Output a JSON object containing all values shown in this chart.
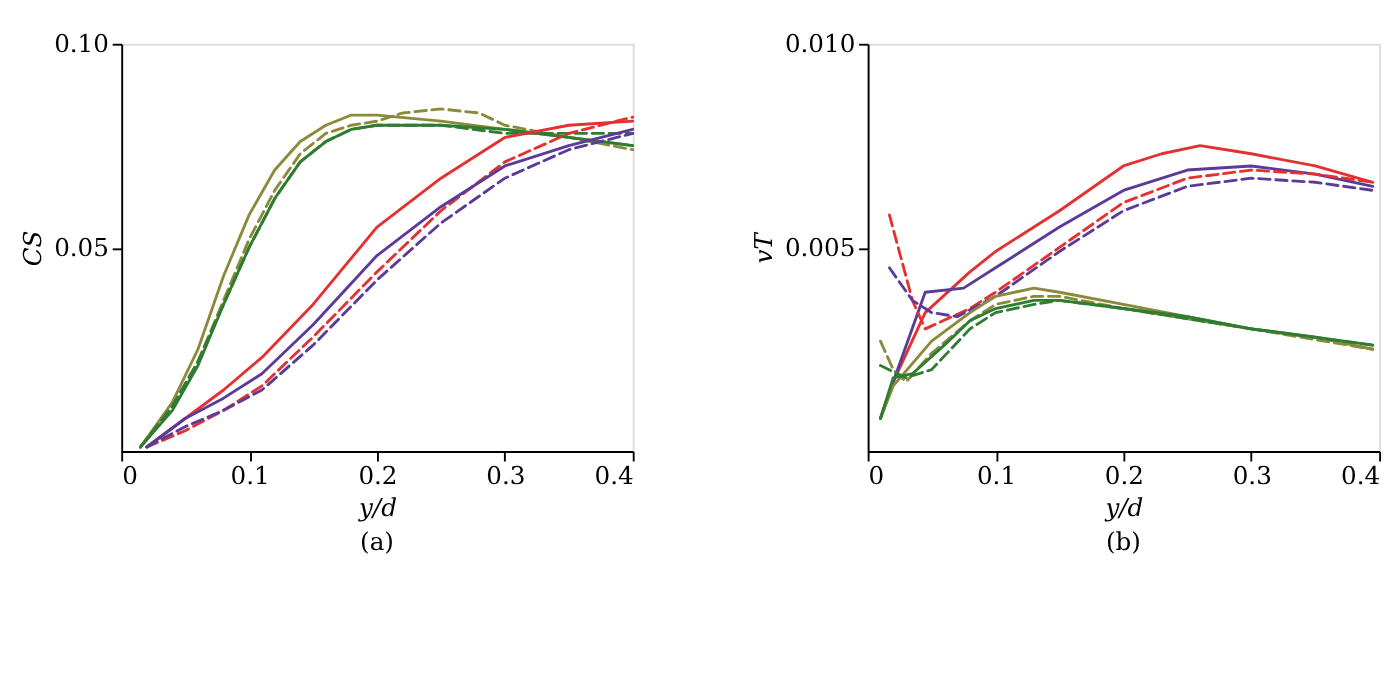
{
  "chart_data": [
    {
      "type": "line",
      "xlabel": "y/d",
      "ylabel": "CS",
      "annotations": [
        "(a)"
      ],
      "xlim": [
        0,
        0.4
      ],
      "xticks": [
        0,
        0.1,
        0.2,
        0.3,
        0.4
      ],
      "ylim": [
        0,
        0.1
      ],
      "yticks": [
        {
          "value": 0.05,
          "label": "0.05"
        },
        {
          "value": 0.1,
          "label": "0.10"
        }
      ],
      "series": [
        {
          "color": "#8a8a3a",
          "line_style": "solid",
          "x": [
            0.015,
            0.04,
            0.06,
            0.08,
            0.1,
            0.12,
            0.14,
            0.16,
            0.18,
            0.2,
            0.25,
            0.3,
            0.35,
            0.4
          ],
          "values": [
            0.001,
            0.012,
            0.025,
            0.043,
            0.058,
            0.069,
            0.076,
            0.08,
            0.0825,
            0.0825,
            0.081,
            0.079,
            0.077,
            0.075
          ]
        },
        {
          "color": "#8a8a3a",
          "line_style": "dashed",
          "x": [
            0.015,
            0.04,
            0.06,
            0.08,
            0.1,
            0.12,
            0.14,
            0.16,
            0.18,
            0.2,
            0.22,
            0.25,
            0.28,
            0.3,
            0.35,
            0.4
          ],
          "values": [
            0.001,
            0.011,
            0.022,
            0.037,
            0.052,
            0.064,
            0.073,
            0.078,
            0.08,
            0.081,
            0.083,
            0.084,
            0.083,
            0.08,
            0.077,
            0.074
          ]
        },
        {
          "color": "#2e7d32",
          "line_style": "solid",
          "x": [
            0.015,
            0.04,
            0.06,
            0.08,
            0.1,
            0.12,
            0.14,
            0.16,
            0.18,
            0.2,
            0.25,
            0.3,
            0.35,
            0.4
          ],
          "values": [
            0.001,
            0.01,
            0.021,
            0.036,
            0.05,
            0.062,
            0.071,
            0.076,
            0.079,
            0.08,
            0.08,
            0.079,
            0.077,
            0.075
          ]
        },
        {
          "color": "#2e7d32",
          "line_style": "dashed",
          "x": [
            0.015,
            0.04,
            0.06,
            0.08,
            0.1,
            0.12,
            0.14,
            0.16,
            0.18,
            0.2,
            0.25,
            0.3,
            0.35,
            0.4
          ],
          "values": [
            0.001,
            0.011,
            0.022,
            0.036,
            0.05,
            0.062,
            0.071,
            0.076,
            0.079,
            0.08,
            0.08,
            0.078,
            0.078,
            0.078
          ]
        },
        {
          "color": "#e53030",
          "line_style": "solid",
          "x": [
            0.02,
            0.05,
            0.08,
            0.11,
            0.15,
            0.2,
            0.25,
            0.28,
            0.3,
            0.35,
            0.4
          ],
          "values": [
            0.001,
            0.008,
            0.015,
            0.023,
            0.036,
            0.055,
            0.067,
            0.073,
            0.077,
            0.08,
            0.081
          ]
        },
        {
          "color": "#e53030",
          "line_style": "dashed",
          "x": [
            0.02,
            0.05,
            0.08,
            0.11,
            0.15,
            0.2,
            0.25,
            0.3,
            0.35,
            0.4
          ],
          "values": [
            0.001,
            0.005,
            0.01,
            0.016,
            0.028,
            0.044,
            0.059,
            0.071,
            0.078,
            0.082
          ]
        },
        {
          "color": "#5b3a99",
          "line_style": "solid",
          "x": [
            0.02,
            0.05,
            0.08,
            0.11,
            0.15,
            0.2,
            0.25,
            0.3,
            0.35,
            0.4
          ],
          "values": [
            0.001,
            0.008,
            0.013,
            0.019,
            0.031,
            0.048,
            0.06,
            0.07,
            0.075,
            0.079
          ]
        },
        {
          "color": "#5b3a99",
          "line_style": "dashed",
          "x": [
            0.02,
            0.05,
            0.08,
            0.11,
            0.15,
            0.2,
            0.25,
            0.3,
            0.35,
            0.4
          ],
          "values": [
            0.001,
            0.006,
            0.01,
            0.015,
            0.026,
            0.042,
            0.056,
            0.067,
            0.074,
            0.078
          ]
        }
      ]
    },
    {
      "type": "line",
      "xlabel": "y/d",
      "ylabel": "vT",
      "annotations": [
        "(b)"
      ],
      "xlim": [
        0,
        0.4
      ],
      "xticks": [
        0,
        0.1,
        0.2,
        0.3,
        0.4
      ],
      "ylim": [
        0,
        0.01
      ],
      "yticks": [
        {
          "value": 0.005,
          "label": "0.005"
        },
        {
          "value": 0.01,
          "label": "0.010"
        }
      ],
      "series": [
        {
          "color": "#e53030",
          "line_style": "solid",
          "x": [
            0.01,
            0.02,
            0.045,
            0.08,
            0.1,
            0.15,
            0.2,
            0.23,
            0.26,
            0.3,
            0.35,
            0.395
          ],
          "values": [
            0.0008,
            0.0017,
            0.0034,
            0.0044,
            0.0049,
            0.0059,
            0.007,
            0.0073,
            0.0075,
            0.0073,
            0.007,
            0.0066
          ]
        },
        {
          "color": "#5b3a99",
          "line_style": "solid",
          "x": [
            0.01,
            0.02,
            0.045,
            0.075,
            0.1,
            0.15,
            0.2,
            0.25,
            0.3,
            0.35,
            0.395
          ],
          "values": [
            0.0008,
            0.0017,
            0.0039,
            0.004,
            0.0045,
            0.0055,
            0.0064,
            0.0069,
            0.007,
            0.0068,
            0.0065
          ]
        },
        {
          "color": "#e53030",
          "line_style": "dashed",
          "x": [
            0.017,
            0.035,
            0.045,
            0.08,
            0.1,
            0.15,
            0.2,
            0.25,
            0.3,
            0.35,
            0.395
          ],
          "values": [
            0.0058,
            0.0037,
            0.003,
            0.0035,
            0.0039,
            0.005,
            0.0061,
            0.0067,
            0.0069,
            0.0068,
            0.0066
          ]
        },
        {
          "color": "#5b3a99",
          "line_style": "dashed",
          "x": [
            0.017,
            0.035,
            0.05,
            0.07,
            0.1,
            0.15,
            0.2,
            0.25,
            0.3,
            0.35,
            0.395
          ],
          "values": [
            0.0045,
            0.0037,
            0.0034,
            0.0033,
            0.0038,
            0.0049,
            0.0059,
            0.0065,
            0.0067,
            0.0066,
            0.0064
          ]
        },
        {
          "color": "#8a8a3a",
          "line_style": "solid",
          "x": [
            0.01,
            0.02,
            0.05,
            0.08,
            0.1,
            0.13,
            0.15,
            0.2,
            0.25,
            0.3,
            0.35,
            0.395
          ],
          "values": [
            0.0008,
            0.0016,
            0.0027,
            0.0034,
            0.0038,
            0.004,
            0.0039,
            0.0036,
            0.0033,
            0.003,
            0.0028,
            0.0025
          ]
        },
        {
          "color": "#8a8a3a",
          "line_style": "dashed",
          "x": [
            0.01,
            0.02,
            0.03,
            0.05,
            0.08,
            0.1,
            0.13,
            0.15,
            0.2,
            0.3,
            0.395
          ],
          "values": [
            0.0027,
            0.002,
            0.0017,
            0.0024,
            0.0032,
            0.0036,
            0.0038,
            0.0038,
            0.0035,
            0.003,
            0.0025
          ]
        },
        {
          "color": "#2e7d32",
          "line_style": "solid",
          "x": [
            0.01,
            0.02,
            0.035,
            0.06,
            0.08,
            0.1,
            0.13,
            0.15,
            0.2,
            0.25,
            0.3,
            0.35,
            0.395
          ],
          "values": [
            0.0008,
            0.0018,
            0.0019,
            0.0026,
            0.0032,
            0.0035,
            0.0037,
            0.0037,
            0.0035,
            0.0033,
            0.003,
            0.0028,
            0.0026
          ]
        },
        {
          "color": "#2e7d32",
          "line_style": "dashed",
          "x": [
            0.01,
            0.03,
            0.05,
            0.08,
            0.1,
            0.13,
            0.15,
            0.2,
            0.3,
            0.395
          ],
          "values": [
            0.0021,
            0.0018,
            0.002,
            0.003,
            0.0034,
            0.0036,
            0.0037,
            0.0035,
            0.003,
            0.0026
          ]
        }
      ]
    }
  ]
}
